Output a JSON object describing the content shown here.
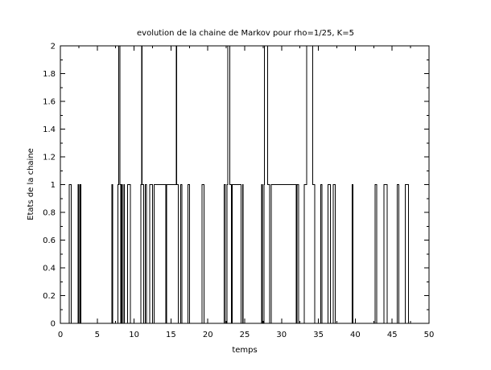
{
  "chart_data": {
    "type": "line",
    "step": true,
    "title": "evolution de la chaine de Markov pour rho=1/25, K=5",
    "xlabel": "temps",
    "ylabel": "Etats de la chaine",
    "xlim": [
      0,
      50
    ],
    "ylim": [
      0,
      2
    ],
    "xticks": [
      0,
      5,
      10,
      15,
      20,
      25,
      30,
      35,
      40,
      45,
      50
    ],
    "yticks": [
      0,
      0.2,
      0.4,
      0.6,
      0.8,
      1,
      1.2,
      1.4,
      1.6,
      1.8,
      2
    ],
    "xtick_labels": [
      "0",
      "5",
      "10",
      "15",
      "20",
      "25",
      "30",
      "35",
      "40",
      "45",
      "50"
    ],
    "ytick_labels": [
      "0",
      "0.2",
      "0.4",
      "0.6",
      "0.8",
      "1",
      "1.2",
      "1.4",
      "1.6",
      "1.8",
      "2"
    ],
    "grid": false,
    "line_color": "#000000",
    "series": [
      {
        "x": [
          0,
          1.2,
          1.5,
          2.4,
          2.5,
          2.7,
          2.8,
          7.0,
          7.1,
          7.8,
          7.9,
          8.1,
          8.2,
          8.3,
          8.4,
          8.6,
          8.7,
          9.1,
          9.5,
          10.9,
          11.0,
          11.1,
          11.3,
          11.5,
          11.7,
          12.1,
          12.5,
          12.7,
          14.3,
          14.4,
          15.7,
          15.8,
          16.0,
          16.3,
          16.5,
          17.3,
          17.5,
          19.2,
          19.5,
          22.2,
          22.4,
          22.6,
          22.7,
          23.0,
          23.2,
          23.3,
          24.5,
          24.7,
          24.8,
          27.3,
          27.4,
          27.6,
          27.7,
          28.1,
          28.4,
          28.6,
          32.0,
          32.1,
          32.3,
          33.1,
          33.4,
          34.2,
          34.5,
          35.3,
          35.5,
          36.3,
          36.6,
          37.0,
          37.3,
          39.6,
          39.7,
          42.7,
          42.9,
          43.9,
          44.3,
          45.7,
          45.9,
          46.8,
          47.2,
          50.0
        ],
        "y": [
          0,
          1,
          0,
          1,
          0,
          1,
          0,
          1,
          0,
          1,
          2,
          1,
          0,
          1,
          0,
          1,
          0,
          1,
          0,
          1,
          2,
          1,
          0,
          1,
          0,
          1,
          0,
          1,
          0,
          1,
          2,
          1,
          0,
          1,
          0,
          1,
          0,
          1,
          0,
          1,
          0,
          1,
          2,
          1,
          0,
          1,
          0,
          1,
          0,
          1,
          0,
          1,
          2,
          1,
          0,
          1,
          0,
          1,
          0,
          1,
          2,
          1,
          0,
          1,
          0,
          1,
          0,
          1,
          0,
          1,
          0,
          1,
          0,
          1,
          0,
          1,
          0,
          1,
          0,
          0
        ]
      }
    ]
  }
}
